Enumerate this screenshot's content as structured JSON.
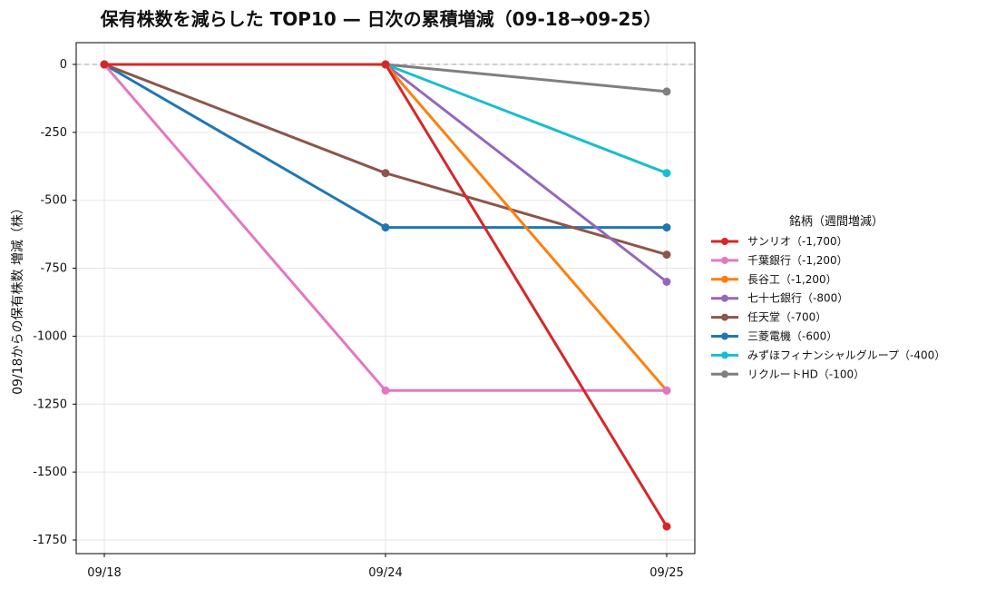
{
  "chart_data": {
    "type": "line",
    "title": "保有株数を減らした TOP10 — 日次の累積増減（09-18→09-25）",
    "xlabel": "",
    "ylabel": "09/18からの保有株数 増減（株）",
    "categories": [
      "09/18",
      "09/24",
      "09/25"
    ],
    "ylim": [
      -1800,
      80
    ],
    "yticks": [
      0,
      -250,
      -500,
      -750,
      -1000,
      -1250,
      -1500,
      -1750
    ],
    "ytick_labels": [
      "0",
      "-250",
      "-500",
      "-750",
      "-1000",
      "-1250",
      "-1500",
      "-1750"
    ],
    "grid": true,
    "zero_line": "dashed",
    "legend_title": "銘柄（週間増減）",
    "legend_position": "right",
    "series": [
      {
        "name": "サンリオ（-1,700）",
        "color": "#d62728",
        "values": [
          0,
          0,
          -1700
        ]
      },
      {
        "name": "千葉銀行（-1,200）",
        "color": "#e377c2",
        "values": [
          0,
          -1200,
          -1200
        ]
      },
      {
        "name": "長谷工（-1,200）",
        "color": "#ff7f0e",
        "values": [
          0,
          0,
          -1200
        ]
      },
      {
        "name": "七十七銀行（-800）",
        "color": "#9467bd",
        "values": [
          0,
          0,
          -800
        ]
      },
      {
        "name": "任天堂（-700）",
        "color": "#8c564b",
        "values": [
          0,
          -400,
          -700
        ]
      },
      {
        "name": "三菱電機（-600）",
        "color": "#1f77b4",
        "values": [
          0,
          -600,
          -600
        ]
      },
      {
        "name": "みずほフィナンシャルグループ（-400）",
        "color": "#17becf",
        "values": [
          0,
          0,
          -400
        ]
      },
      {
        "name": "リクルートHD（-100）",
        "color": "#7f7f7f",
        "values": [
          0,
          0,
          -100
        ]
      }
    ]
  }
}
